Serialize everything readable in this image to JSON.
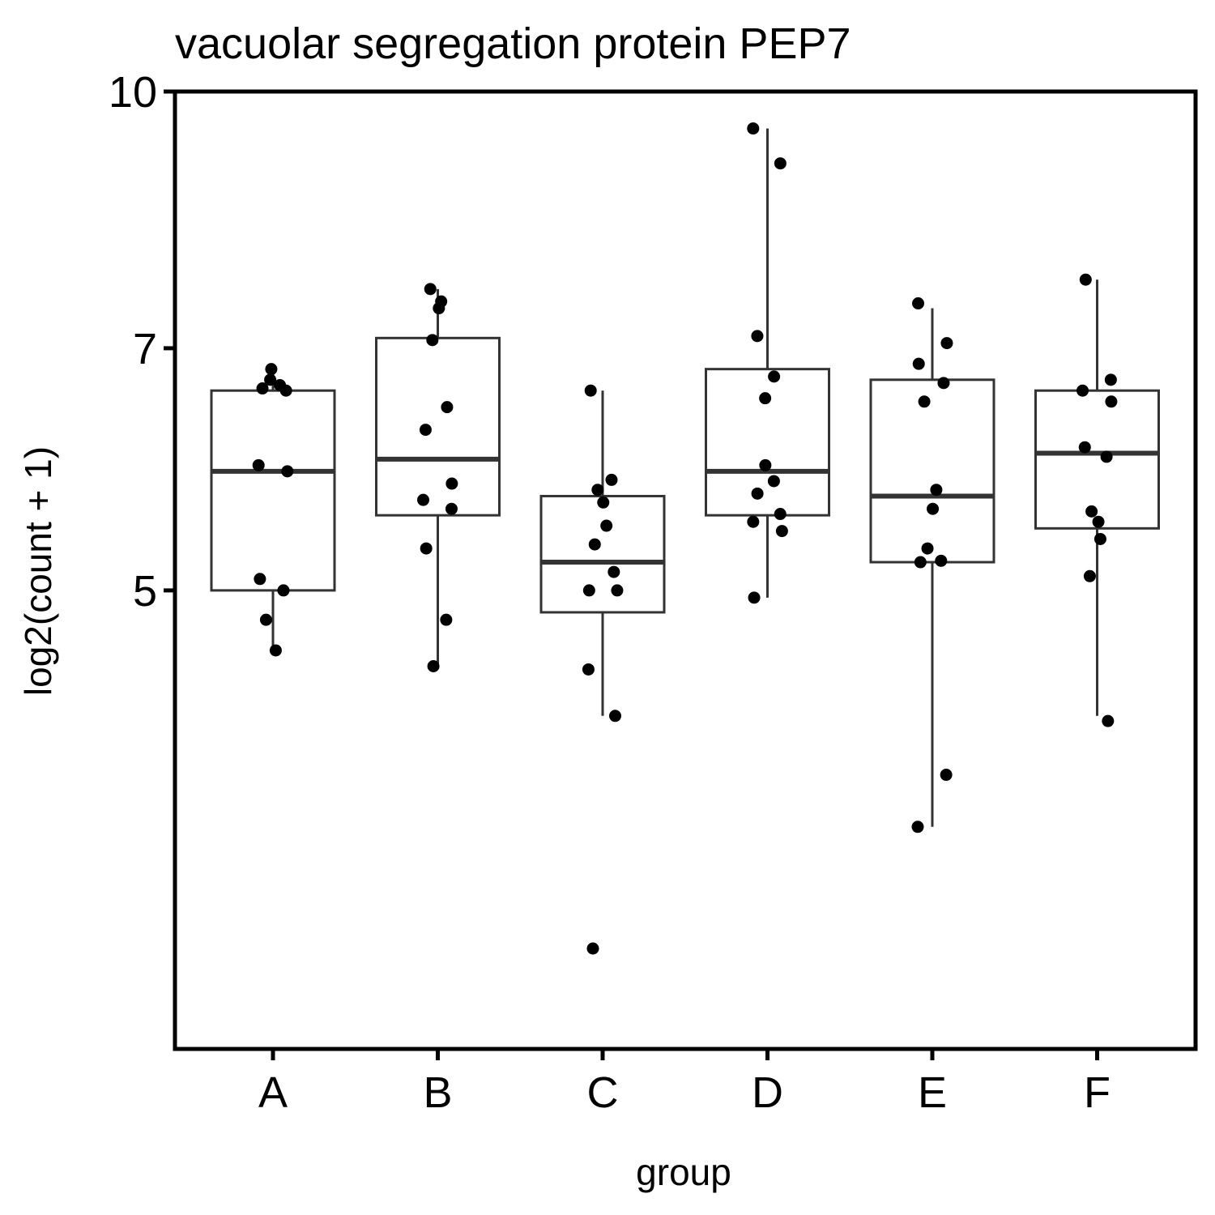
{
  "chart_data": {
    "type": "boxplot",
    "title": "vacuolar segregation protein PEP7",
    "xlabel": "group",
    "ylabel": "log2(count + 1)",
    "ylim": [
      2.65,
      10.0
    ],
    "yscale": "log",
    "yticks": [
      5,
      7,
      10
    ],
    "ytick_labels": [
      "5",
      "7",
      "10"
    ],
    "categories": [
      "A",
      "B",
      "C",
      "D",
      "E",
      "F"
    ],
    "grid": false,
    "legend": "none",
    "colors": {
      "box_stroke": "#333333",
      "point": "#000000",
      "axis": "#000000",
      "background": "#ffffff"
    },
    "boxes": [
      {
        "group": "A",
        "whisker_low": 4.6,
        "q1": 5.0,
        "median": 5.9,
        "q3": 6.6,
        "whisker_high": 6.8
      },
      {
        "group": "B",
        "whisker_low": 4.5,
        "q1": 5.55,
        "median": 6.0,
        "q3": 7.1,
        "whisker_high": 7.6
      },
      {
        "group": "C",
        "whisker_low": 4.2,
        "q1": 4.85,
        "median": 5.2,
        "q3": 5.7,
        "whisker_high": 6.6
      },
      {
        "group": "D",
        "whisker_low": 4.95,
        "q1": 5.55,
        "median": 5.9,
        "q3": 6.8,
        "whisker_high": 9.5
      },
      {
        "group": "E",
        "whisker_low": 3.6,
        "q1": 5.2,
        "median": 5.7,
        "q3": 6.7,
        "whisker_high": 7.4
      },
      {
        "group": "F",
        "whisker_low": 4.2,
        "q1": 5.45,
        "median": 6.05,
        "q3": 6.6,
        "whisker_high": 7.7
      }
    ],
    "points": [
      {
        "group": "A",
        "values": [
          6.8,
          6.7,
          6.65,
          6.62,
          6.6,
          5.95,
          5.9,
          5.08,
          5.0,
          4.8,
          4.6
        ]
      },
      {
        "group": "B",
        "values": [
          7.6,
          7.47,
          7.4,
          7.08,
          6.45,
          6.25,
          5.8,
          5.67,
          5.6,
          5.3,
          4.8,
          4.5
        ]
      },
      {
        "group": "C",
        "values": [
          6.6,
          5.83,
          5.75,
          5.65,
          5.47,
          5.33,
          5.13,
          5.0,
          5.0,
          4.48,
          4.2,
          3.04
        ]
      },
      {
        "group": "D",
        "values": [
          9.5,
          9.05,
          7.12,
          6.73,
          6.53,
          5.95,
          5.82,
          5.72,
          5.56,
          5.5,
          5.43,
          4.95
        ]
      },
      {
        "group": "E",
        "values": [
          7.45,
          7.05,
          6.85,
          6.67,
          6.5,
          5.75,
          5.6,
          5.3,
          5.21,
          5.2,
          3.87,
          3.6
        ]
      },
      {
        "group": "F",
        "values": [
          7.7,
          6.7,
          6.6,
          6.5,
          6.1,
          6.02,
          5.58,
          5.5,
          5.37,
          5.1,
          4.17
        ]
      }
    ]
  }
}
